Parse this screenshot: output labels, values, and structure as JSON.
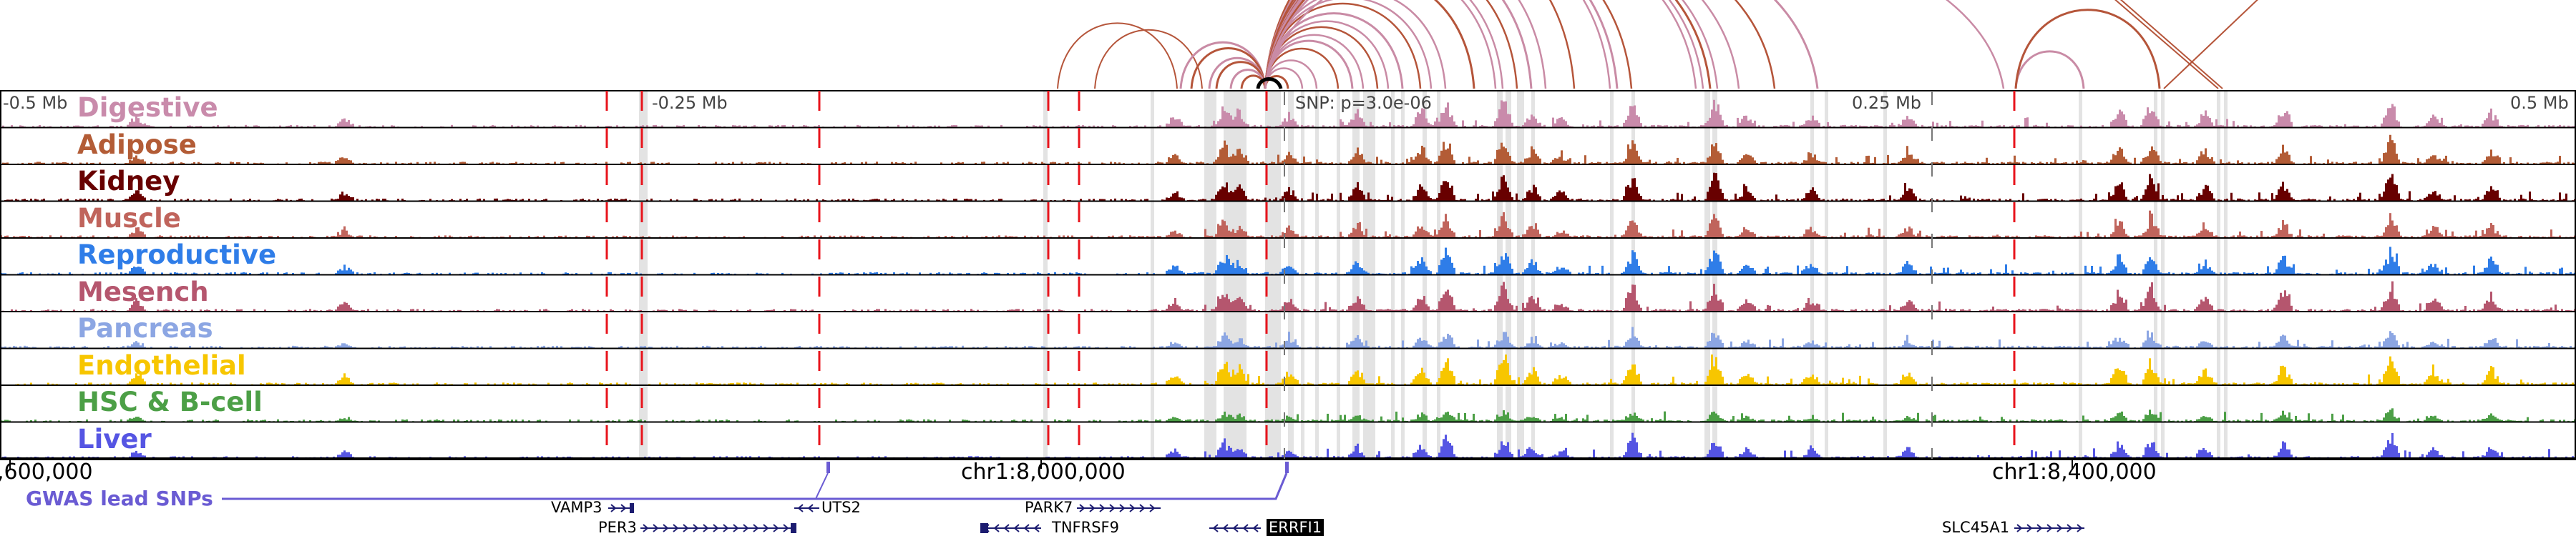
{
  "tracks": [
    {
      "label": "Digestive",
      "color": "#c98bab"
    },
    {
      "label": "Adipose",
      "color": "#b35c36"
    },
    {
      "label": "Kidney",
      "color": "#680000"
    },
    {
      "label": "Muscle",
      "color": "#c0645c"
    },
    {
      "label": "Reproductive",
      "color": "#2f7de8"
    },
    {
      "label": "Mesench",
      "color": "#b5566e"
    },
    {
      "label": "Pancreas",
      "color": "#8ca6e3"
    },
    {
      "label": "Endothelial",
      "color": "#f7c600"
    },
    {
      "label": "HSC & B-cell",
      "color": "#4c9f46"
    },
    {
      "label": "Liver",
      "color": "#5555e3"
    }
  ],
  "scale": {
    "left": "-0.5 Mb",
    "mid_left": "-0.25 Mb",
    "snp": "SNP: p=3.0e-06",
    "mid_right": "0.25 Mb",
    "right": "0.5 Mb"
  },
  "coordinates": [
    ",600,000",
    "chr1:8,000,000",
    "chr1:8,400,000"
  ],
  "gwas": {
    "label": "GWAS lead SNPs",
    "color": "#6a5bd3"
  },
  "genes": [
    {
      "name": "VAMP3",
      "strand": "+"
    },
    {
      "name": "UTS2",
      "strand": "-"
    },
    {
      "name": "PARK7",
      "strand": "+"
    },
    {
      "name": "PER3",
      "strand": "+"
    },
    {
      "name": "TNFRSF9",
      "strand": "-"
    },
    {
      "name": "ERRFI1",
      "strand": "-",
      "highlighted": true
    },
    {
      "name": "SLC45A1",
      "strand": "+"
    }
  ],
  "colors": {
    "arc_brown": "#b5553a",
    "arc_pink": "#c98ba5",
    "highlight": "#e3e3e3",
    "gwas_red": "#e8141c",
    "gene": "#1c1c70"
  }
}
